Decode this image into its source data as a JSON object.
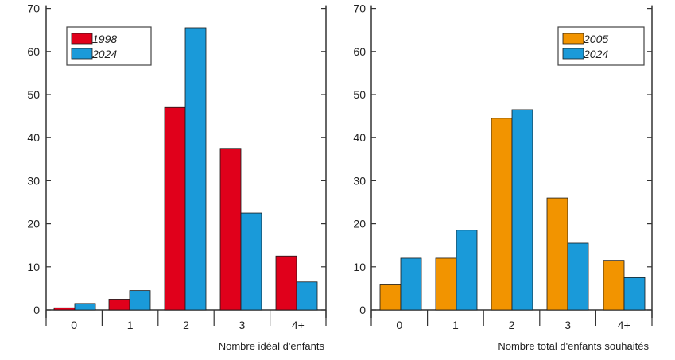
{
  "colors": {
    "red": "#e0001b",
    "blue": "#1a9ad9",
    "orange": "#f29400",
    "axis": "#333333",
    "legend_border": "#444444"
  },
  "chart_data": [
    {
      "type": "bar",
      "title": "",
      "xlabel": "Nombre idéal d'enfants",
      "ylabel": "",
      "ylim": [
        0,
        70
      ],
      "yticks": [
        "0",
        "10",
        "20",
        "30",
        "40",
        "50",
        "60",
        "70"
      ],
      "categories": [
        "0",
        "1",
        "2",
        "3",
        "4+"
      ],
      "legend_position": "top-left",
      "series": [
        {
          "name": "1998",
          "color": "#e0001b",
          "values": [
            0.5,
            2.5,
            47,
            37.5,
            12.5
          ]
        },
        {
          "name": "2024",
          "color": "#1a9ad9",
          "values": [
            1.5,
            4.5,
            65.5,
            22.5,
            6.5
          ]
        }
      ]
    },
    {
      "type": "bar",
      "title": "",
      "xlabel": "Nombre total d'enfants souhaités",
      "ylabel": "",
      "ylim": [
        0,
        70
      ],
      "yticks": [
        "0",
        "10",
        "20",
        "30",
        "40",
        "50",
        "60",
        "70"
      ],
      "categories": [
        "0",
        "1",
        "2",
        "3",
        "4+"
      ],
      "legend_position": "top-right",
      "series": [
        {
          "name": "2005",
          "color": "#f29400",
          "values": [
            6,
            12,
            44.5,
            26,
            11.5
          ]
        },
        {
          "name": "2024",
          "color": "#1a9ad9",
          "values": [
            12,
            18.5,
            46.5,
            15.5,
            7.5
          ]
        }
      ]
    }
  ]
}
